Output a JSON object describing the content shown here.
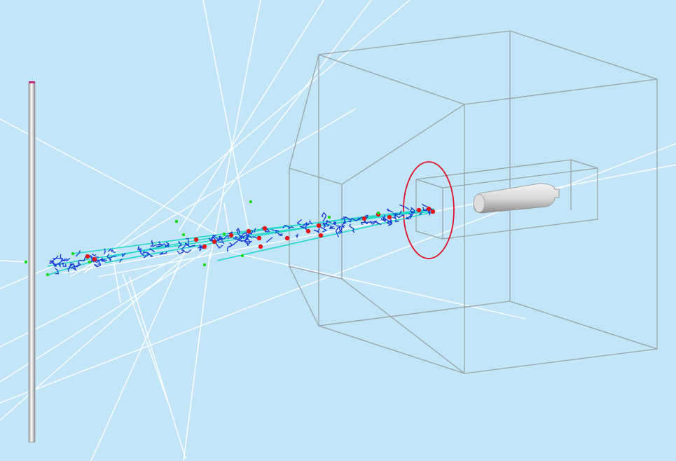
{
  "viewer": {
    "background_color": "#c2e6f8",
    "colors": {
      "ray": "#ffffff",
      "wireframe": "#9aa3a8",
      "ring": "#e0102a",
      "track_primary": "#22d8c8",
      "track_secondary": "#1a3bd8",
      "hit_red": "#e01818",
      "hit_green": "#18d818",
      "rod_cap": "#c0307a"
    }
  }
}
